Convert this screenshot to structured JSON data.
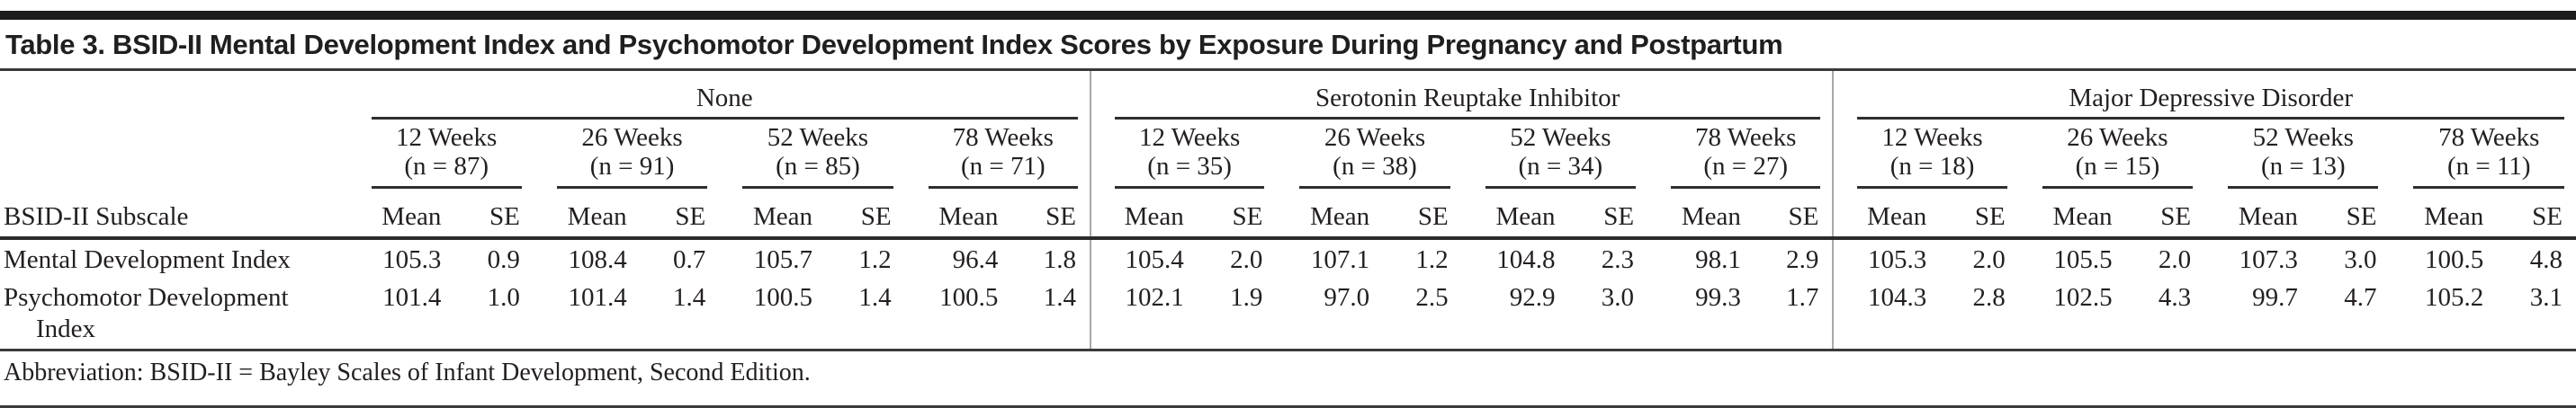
{
  "title": "Table 3. BSID-II Mental Development Index and Psychomotor Development Index Scores by Exposure During Pregnancy and Postpartum",
  "table": {
    "row_header": "BSID-II Subscale",
    "col_headers": {
      "mean": "Mean",
      "se": "SE"
    },
    "groups": [
      {
        "label": "None",
        "weeks": [
          {
            "label": "12 Weeks",
            "n": "(n = 87)"
          },
          {
            "label": "26 Weeks",
            "n": "(n = 91)"
          },
          {
            "label": "52 Weeks",
            "n": "(n = 85)"
          },
          {
            "label": "78 Weeks",
            "n": "(n = 71)"
          }
        ]
      },
      {
        "label": "Serotonin Reuptake Inhibitor",
        "weeks": [
          {
            "label": "12 Weeks",
            "n": "(n = 35)"
          },
          {
            "label": "26 Weeks",
            "n": "(n = 38)"
          },
          {
            "label": "52 Weeks",
            "n": "(n = 34)"
          },
          {
            "label": "78 Weeks",
            "n": "(n = 27)"
          }
        ]
      },
      {
        "label": "Major Depressive Disorder",
        "weeks": [
          {
            "label": "12 Weeks",
            "n": "(n = 18)"
          },
          {
            "label": "26 Weeks",
            "n": "(n = 15)"
          },
          {
            "label": "52 Weeks",
            "n": "(n = 13)"
          },
          {
            "label": "78 Weeks",
            "n": "(n = 11)"
          }
        ]
      }
    ],
    "rows": [
      {
        "label": "Mental Development Index",
        "none": [
          "105.3",
          "0.9",
          "108.4",
          "0.7",
          "105.7",
          "1.2",
          "96.4",
          "1.8"
        ],
        "sri": [
          "105.4",
          "2.0",
          "107.1",
          "1.2",
          "104.8",
          "2.3",
          "98.1",
          "2.9"
        ],
        "mdd": [
          "105.3",
          "2.0",
          "105.5",
          "2.0",
          "107.3",
          "3.0",
          "100.5",
          "4.8"
        ]
      },
      {
        "label": "Psychomotor Development Index",
        "none": [
          "101.4",
          "1.0",
          "101.4",
          "1.4",
          "100.5",
          "1.4",
          "100.5",
          "1.4"
        ],
        "sri": [
          "102.1",
          "1.9",
          "97.0",
          "2.5",
          "92.9",
          "3.0",
          "99.3",
          "1.7"
        ],
        "mdd": [
          "104.3",
          "2.8",
          "102.5",
          "4.3",
          "99.7",
          "4.7",
          "105.2",
          "3.1"
        ]
      }
    ],
    "footnote": "Abbreviation: BSID-II = Bayley Scales of Infant Development, Second Edition."
  }
}
